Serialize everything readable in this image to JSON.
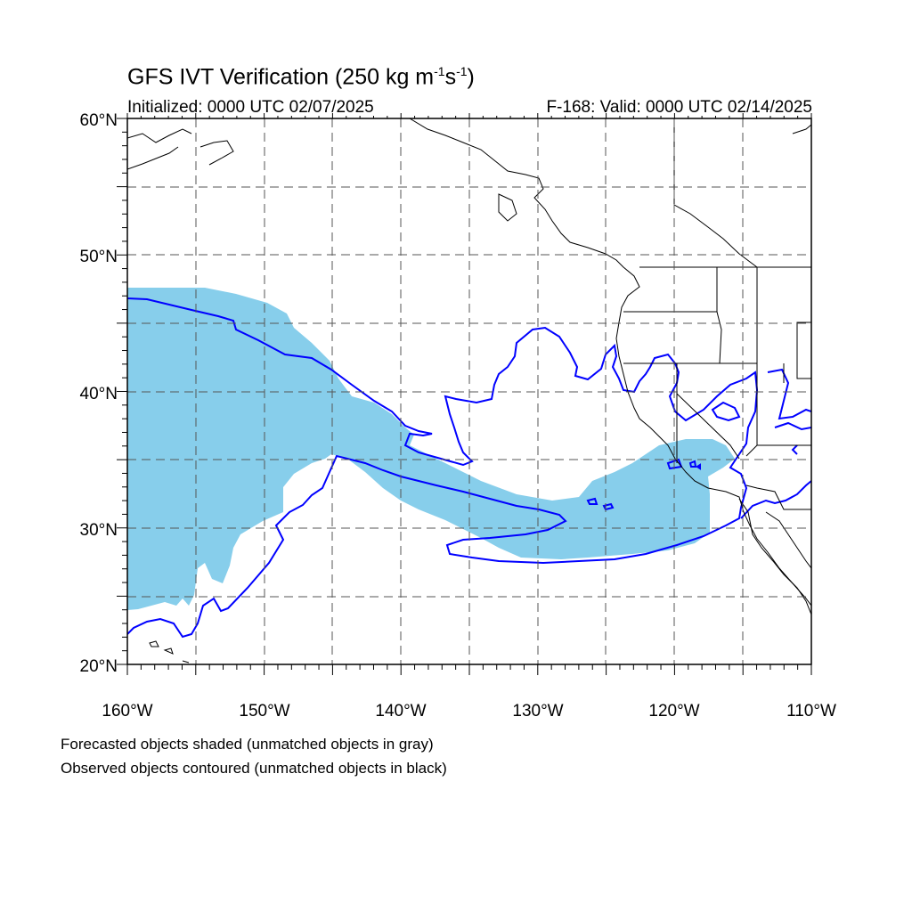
{
  "title": {
    "main": "GFS IVT Verification (250 kg m",
    "sup1": "-1",
    "mid": "s",
    "sup2": "-1",
    "end": ")"
  },
  "initialized": "Initialized: 0000 UTC 02/07/2025",
  "valid": "F-168: Valid: 0000 UTC 02/14/2025",
  "map": {
    "projection": "cylindrical-equidistant",
    "lon_range": [
      -160,
      -110
    ],
    "lat_range": [
      20,
      60
    ],
    "grid": "dashed every 5 degrees",
    "lat_labels": [
      "20°N",
      "30°N",
      "40°N",
      "50°N",
      "60°N"
    ],
    "lon_labels": [
      "160°W",
      "150°W",
      "140°W",
      "130°W",
      "120°W",
      "110°W"
    ],
    "colors": {
      "forecast_fill": "#87ceeb",
      "observed_contour": "#0000ff",
      "coastline": "#000000",
      "gridline": "#555555"
    },
    "layers": [
      "forecast-ivt-object-shaded",
      "observed-ivt-object-contour",
      "coastlines",
      "state-borders"
    ]
  },
  "footer": {
    "line1": "Forecasted objects shaded (unmatched objects in gray)",
    "line2": "Observed objects contoured (unmatched objects in black)"
  }
}
